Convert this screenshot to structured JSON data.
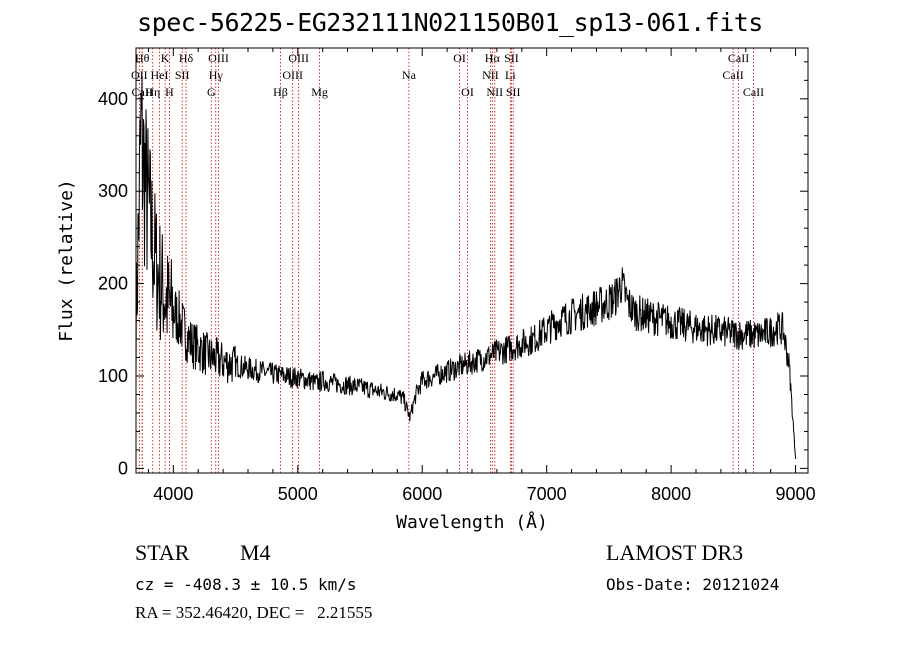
{
  "chart_data": {
    "type": "line",
    "title": "spec-56225-EG232111N021150B01_sp13-061.fits",
    "xlabel": "Wavelength (Å)",
    "ylabel": "Flux (relative)",
    "xlim": [
      3700,
      9100
    ],
    "ylim": [
      -5,
      455
    ],
    "xticks": [
      4000,
      5000,
      6000,
      7000,
      8000,
      9000
    ],
    "yticks": [
      0,
      100,
      200,
      300,
      400
    ],
    "series": [
      {
        "name": "spectrum",
        "x": [
          3700,
          3720,
          3740,
          3760,
          3780,
          3800,
          3820,
          3840,
          3860,
          3880,
          3900,
          3950,
          4000,
          4050,
          4100,
          4150,
          4200,
          4250,
          4300,
          4350,
          4400,
          4500,
          4600,
          4700,
          4800,
          4900,
          5000,
          5100,
          5150,
          5200,
          5300,
          5400,
          5500,
          5600,
          5700,
          5800,
          5850,
          5900,
          5950,
          6000,
          6100,
          6200,
          6300,
          6400,
          6500,
          6550,
          6600,
          6700,
          6800,
          6900,
          7000,
          7100,
          7200,
          7300,
          7400,
          7500,
          7550,
          7600,
          7650,
          7700,
          7800,
          7900,
          8000,
          8100,
          8200,
          8300,
          8400,
          8500,
          8600,
          8700,
          8800,
          8850,
          8900,
          8950,
          9000
        ],
        "y": [
          150,
          260,
          360,
          330,
          300,
          280,
          260,
          240,
          220,
          210,
          200,
          180,
          170,
          160,
          145,
          135,
          130,
          125,
          120,
          118,
          115,
          112,
          108,
          105,
          102,
          100,
          98,
          95,
          92,
          95,
          92,
          90,
          88,
          85,
          82,
          80,
          75,
          55,
          80,
          95,
          100,
          105,
          110,
          115,
          120,
          122,
          125,
          130,
          135,
          140,
          150,
          160,
          165,
          170,
          175,
          180,
          185,
          200,
          180,
          170,
          165,
          162,
          158,
          155,
          152,
          150,
          148,
          146,
          145,
          144,
          148,
          152,
          150,
          110,
          10
        ]
      }
    ],
    "lines": [
      {
        "name": "OII",
        "x": 3727,
        "row": 2
      },
      {
        "name": "Hθ",
        "x": 3750,
        "row": 1
      },
      {
        "name": "CaII",
        "x": 3750,
        "row": 3
      },
      {
        "name": "Hη",
        "x": 3835,
        "row": 3
      },
      {
        "name": "HeI",
        "x": 3889,
        "row": 2
      },
      {
        "name": "K",
        "x": 3934,
        "row": 1
      },
      {
        "name": "SII",
        "x": 4071,
        "row": 2
      },
      {
        "name": "H",
        "x": 3969,
        "row": 3
      },
      {
        "name": "Hδ",
        "x": 4102,
        "row": 1
      },
      {
        "name": "OIII",
        "x": 4363,
        "row": 1
      },
      {
        "name": "Hγ",
        "x": 4341,
        "row": 2
      },
      {
        "name": "G",
        "x": 4305,
        "row": 3
      },
      {
        "name": "Hβ",
        "x": 4861,
        "row": 3
      },
      {
        "name": "OIII",
        "x": 5007,
        "row": 1
      },
      {
        "name": "OIII",
        "x": 4959,
        "row": 2
      },
      {
        "name": "Mg",
        "x": 5175,
        "row": 3
      },
      {
        "name": "Na",
        "x": 5893,
        "row": 2
      },
      {
        "name": "OI",
        "x": 6300,
        "row": 1
      },
      {
        "name": "OI",
        "x": 6364,
        "row": 3
      },
      {
        "name": "Hα",
        "x": 6563,
        "row": 1
      },
      {
        "name": "NII",
        "x": 6548,
        "row": 2
      },
      {
        "name": "NII",
        "x": 6583,
        "row": 3
      },
      {
        "name": "SII",
        "x": 6717,
        "row": 1
      },
      {
        "name": "Li",
        "x": 6708,
        "row": 2
      },
      {
        "name": "SII",
        "x": 6731,
        "row": 3
      },
      {
        "name": "CaII",
        "x": 8542,
        "row": 1
      },
      {
        "name": "CaII",
        "x": 8498,
        "row": 2
      },
      {
        "name": "CaII",
        "x": 8662,
        "row": 3
      }
    ],
    "line_color": "#000000",
    "marker_color": "#cc0000"
  },
  "info": {
    "class": "STAR",
    "subclass": "M4",
    "survey": "LAMOST DR3",
    "cz": "cz = -408.3 ± 10.5 km/s",
    "obs_date": "Obs-Date: 20121024",
    "coords": "RA = 352.46420, DEC =   2.21555"
  }
}
